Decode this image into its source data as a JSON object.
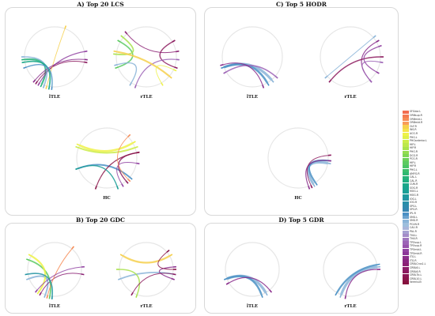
{
  "panels": {
    "A": {
      "title": "A) Top 20 LCS"
    },
    "B": {
      "title": "B) Top 20 GDC"
    },
    "C": {
      "title": "C) Top 5 HODR"
    },
    "D": {
      "title": "D) Top 5 GDR"
    }
  },
  "circles": [
    {
      "id": "A-lTLE",
      "label": "lTLE",
      "panel": "A"
    },
    {
      "id": "A-rTLE",
      "label": "rTLE",
      "panel": "A"
    },
    {
      "id": "A-HC",
      "label": "HC",
      "panel": "A"
    },
    {
      "id": "B-lTLE",
      "label": "lTLE",
      "panel": "B"
    },
    {
      "id": "B-rTLE",
      "label": "rTLE",
      "panel": "B"
    },
    {
      "id": "C-lTLE",
      "label": "lTLE",
      "panel": "C"
    },
    {
      "id": "C-rTLE",
      "label": "rTLE",
      "panel": "C"
    },
    {
      "id": "C-HC",
      "label": "HC",
      "panel": "C"
    },
    {
      "id": "D-lTLE",
      "label": "lTLE",
      "panel": "D"
    },
    {
      "id": "D-rTLE",
      "label": "rTLE",
      "panel": "D"
    }
  ],
  "legend": [
    {
      "label": "SFGdor.L",
      "color": "#f26c4f"
    },
    {
      "label": "ORBsup.R",
      "color": "#f47a50"
    },
    {
      "label": "ORBmid.L",
      "color": "#f68b55"
    },
    {
      "label": "ORBmid.R",
      "color": "#f89c5a"
    },
    {
      "label": "OLF.R",
      "color": "#f6d04d"
    },
    {
      "label": "INS.R",
      "color": "#f4e44a"
    },
    {
      "label": "ACG.R",
      "color": "#eef24a"
    },
    {
      "label": "PHG.L",
      "color": "#dff04a"
    },
    {
      "label": "PHGanterior.L",
      "color": "#cdec4b"
    },
    {
      "label": "HIP.L",
      "color": "#bde84c"
    },
    {
      "label": "HIP.R",
      "color": "#a9e24d"
    },
    {
      "label": "PHG.R",
      "color": "#93dc4f"
    },
    {
      "label": "DCG.R",
      "color": "#7ed652"
    },
    {
      "label": "PCG.R",
      "color": "#6cd05a"
    },
    {
      "label": "HIP.L",
      "color": "#5cca61"
    },
    {
      "label": "HIP.R",
      "color": "#4bc466"
    },
    {
      "label": "PHG.L",
      "color": "#3cbe6c"
    },
    {
      "label": "AMYG.R",
      "color": "#2fb872"
    },
    {
      "label": "CAL.L",
      "color": "#26b279"
    },
    {
      "label": "CAL.R",
      "color": "#1fad80"
    },
    {
      "label": "CUN.R",
      "color": "#1aa888"
    },
    {
      "label": "SOG.R",
      "color": "#19a38f"
    },
    {
      "label": "MOG.L",
      "color": "#1a9e96"
    },
    {
      "label": "MOG.R",
      "color": "#1d999c"
    },
    {
      "label": "IOG.L",
      "color": "#2294a2"
    },
    {
      "label": "IOG.R",
      "color": "#288fa8"
    },
    {
      "label": "SPG.L",
      "color": "#2f8aad"
    },
    {
      "label": "SPG.R",
      "color": "#3685b1"
    },
    {
      "label": "IPL.R",
      "color": "#4a90c4"
    },
    {
      "label": "SMG.L",
      "color": "#6aa2ce"
    },
    {
      "label": "SMG.R",
      "color": "#8ab4d8"
    },
    {
      "label": "PCUN.R",
      "color": "#9dbfdd"
    },
    {
      "label": "CAU.R",
      "color": "#a9b5da"
    },
    {
      "label": "PAL.R",
      "color": "#a6a0d1"
    },
    {
      "label": "THA.L",
      "color": "#a38bc8"
    },
    {
      "label": "THA.R",
      "color": "#a077bf"
    },
    {
      "label": "TPOsup.L",
      "color": "#9c63b6"
    },
    {
      "label": "TPOsup.R",
      "color": "#9752ac"
    },
    {
      "label": "TPOmid.L",
      "color": "#9243a2"
    },
    {
      "label": "TPOmid.R",
      "color": "#8c3698"
    },
    {
      "label": "ITG.L",
      "color": "#8a2d8c"
    },
    {
      "label": "ITG.R",
      "color": "#8a2680"
    },
    {
      "label": "CRBLCrus1.L",
      "color": "#8b2174"
    },
    {
      "label": "CRBL6.L",
      "color": "#8c1d69"
    },
    {
      "label": "CRBL6.R",
      "color": "#8c1a5e"
    },
    {
      "label": "CRBL7b.L",
      "color": "#8b1753"
    },
    {
      "label": "CRBL10.L",
      "color": "#891448"
    },
    {
      "label": "Vermis45",
      "color": "#86113d"
    }
  ]
}
